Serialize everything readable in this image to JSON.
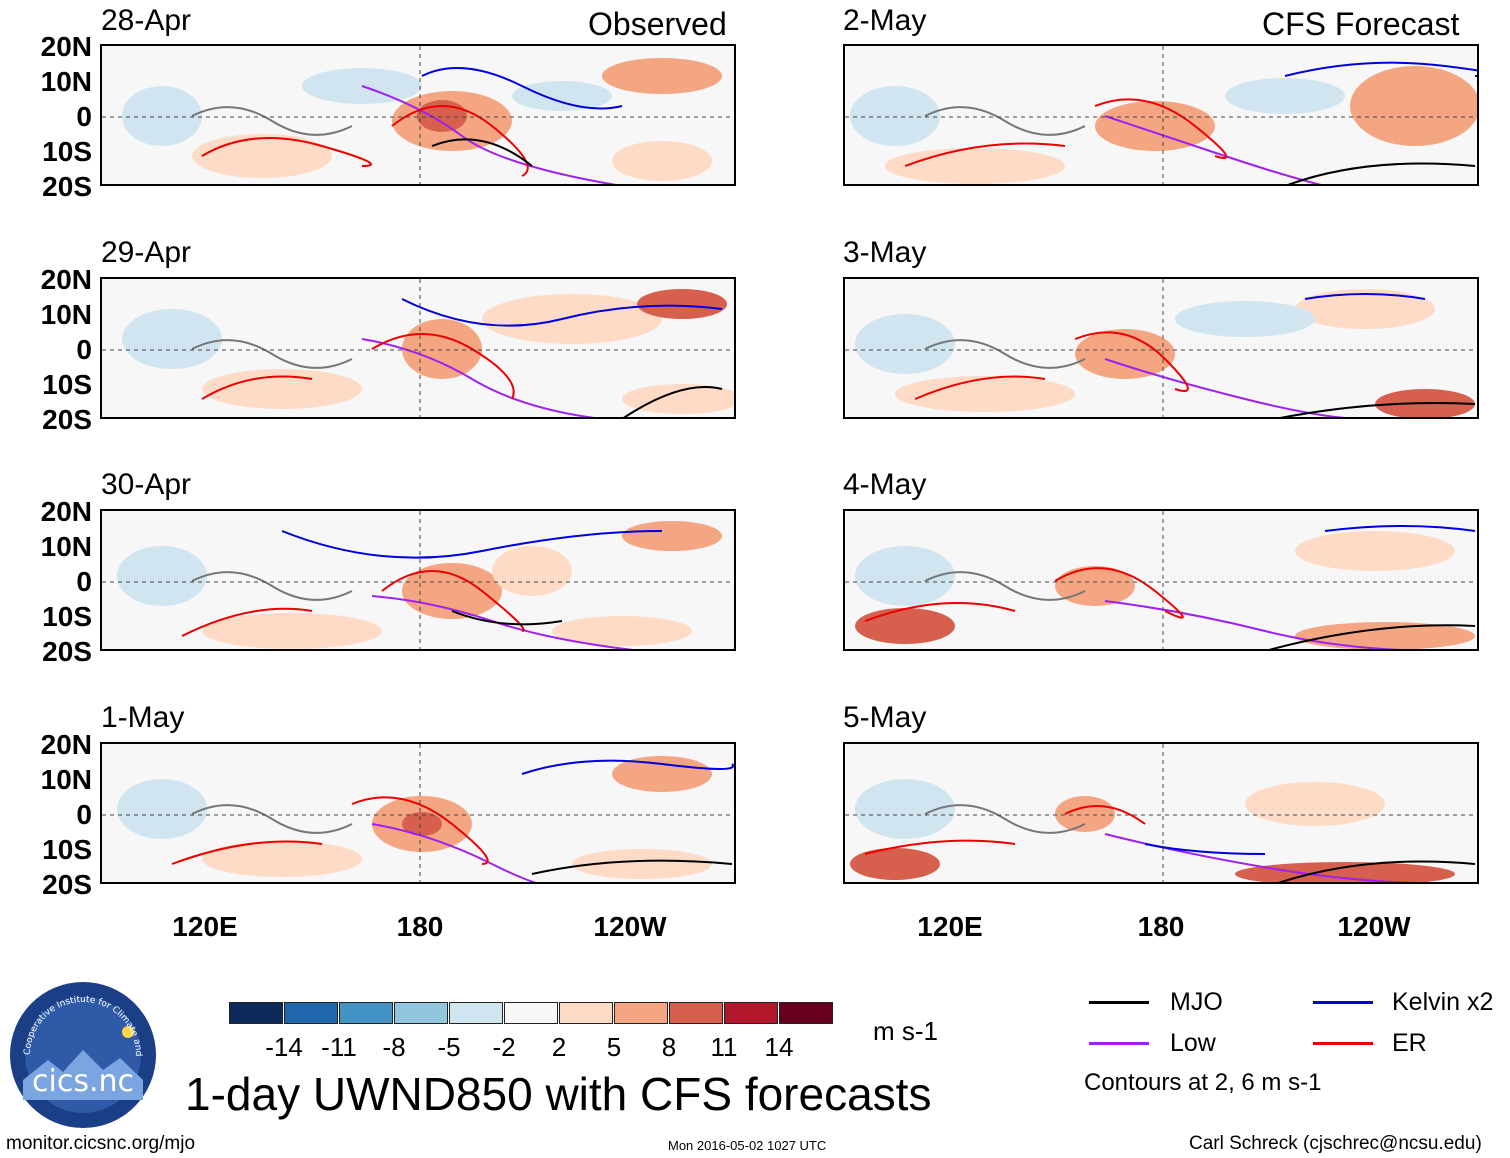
{
  "header": {
    "left_label": "Observed",
    "right_label": "CFS Forecast"
  },
  "panels": {
    "p0": "28-Apr",
    "p1": "29-Apr",
    "p2": "30-Apr",
    "p3": "1-May",
    "p4": "2-May",
    "p5": "3-May",
    "p6": "4-May",
    "p7": "5-May"
  },
  "lat_labels": [
    "20N",
    "10N",
    "0",
    "10S",
    "20S"
  ],
  "lon_labels": [
    "120E",
    "180",
    "120W"
  ],
  "colorbar": {
    "colors": [
      "#0e2a5a",
      "#2166ac",
      "#4393c3",
      "#92c5de",
      "#d1e5f0",
      "#f7f7f7",
      "#fddbc7",
      "#f4a582",
      "#d6604d",
      "#b2182b",
      "#67001f"
    ],
    "labels": [
      "-14",
      "-11",
      "-8",
      "-5",
      "-2",
      "2",
      "5",
      "8",
      "11",
      "14"
    ],
    "units": "m s-1"
  },
  "legend": {
    "mjo": "MJO",
    "low": "Low",
    "kelvin": "Kelvin x2",
    "er": "ER",
    "mjo_color": "#000000",
    "low_color": "#a020f0",
    "kelvin_color": "#0000dd",
    "er_color": "#ee0000",
    "note": "Contours at 2, 6 m s-1"
  },
  "title": "1-day UWND850 with CFS forecasts",
  "logo_text": "cics.nc",
  "logo_ring_text": "Cooperative Institute for Climate and Satellites",
  "footer": {
    "url": "monitor.cicsnc.org/mjo",
    "timestamp": "Mon 2016-05-02 1027 UTC",
    "author": "Carl Schreck (cjschrec@ncsu.edu)"
  }
}
